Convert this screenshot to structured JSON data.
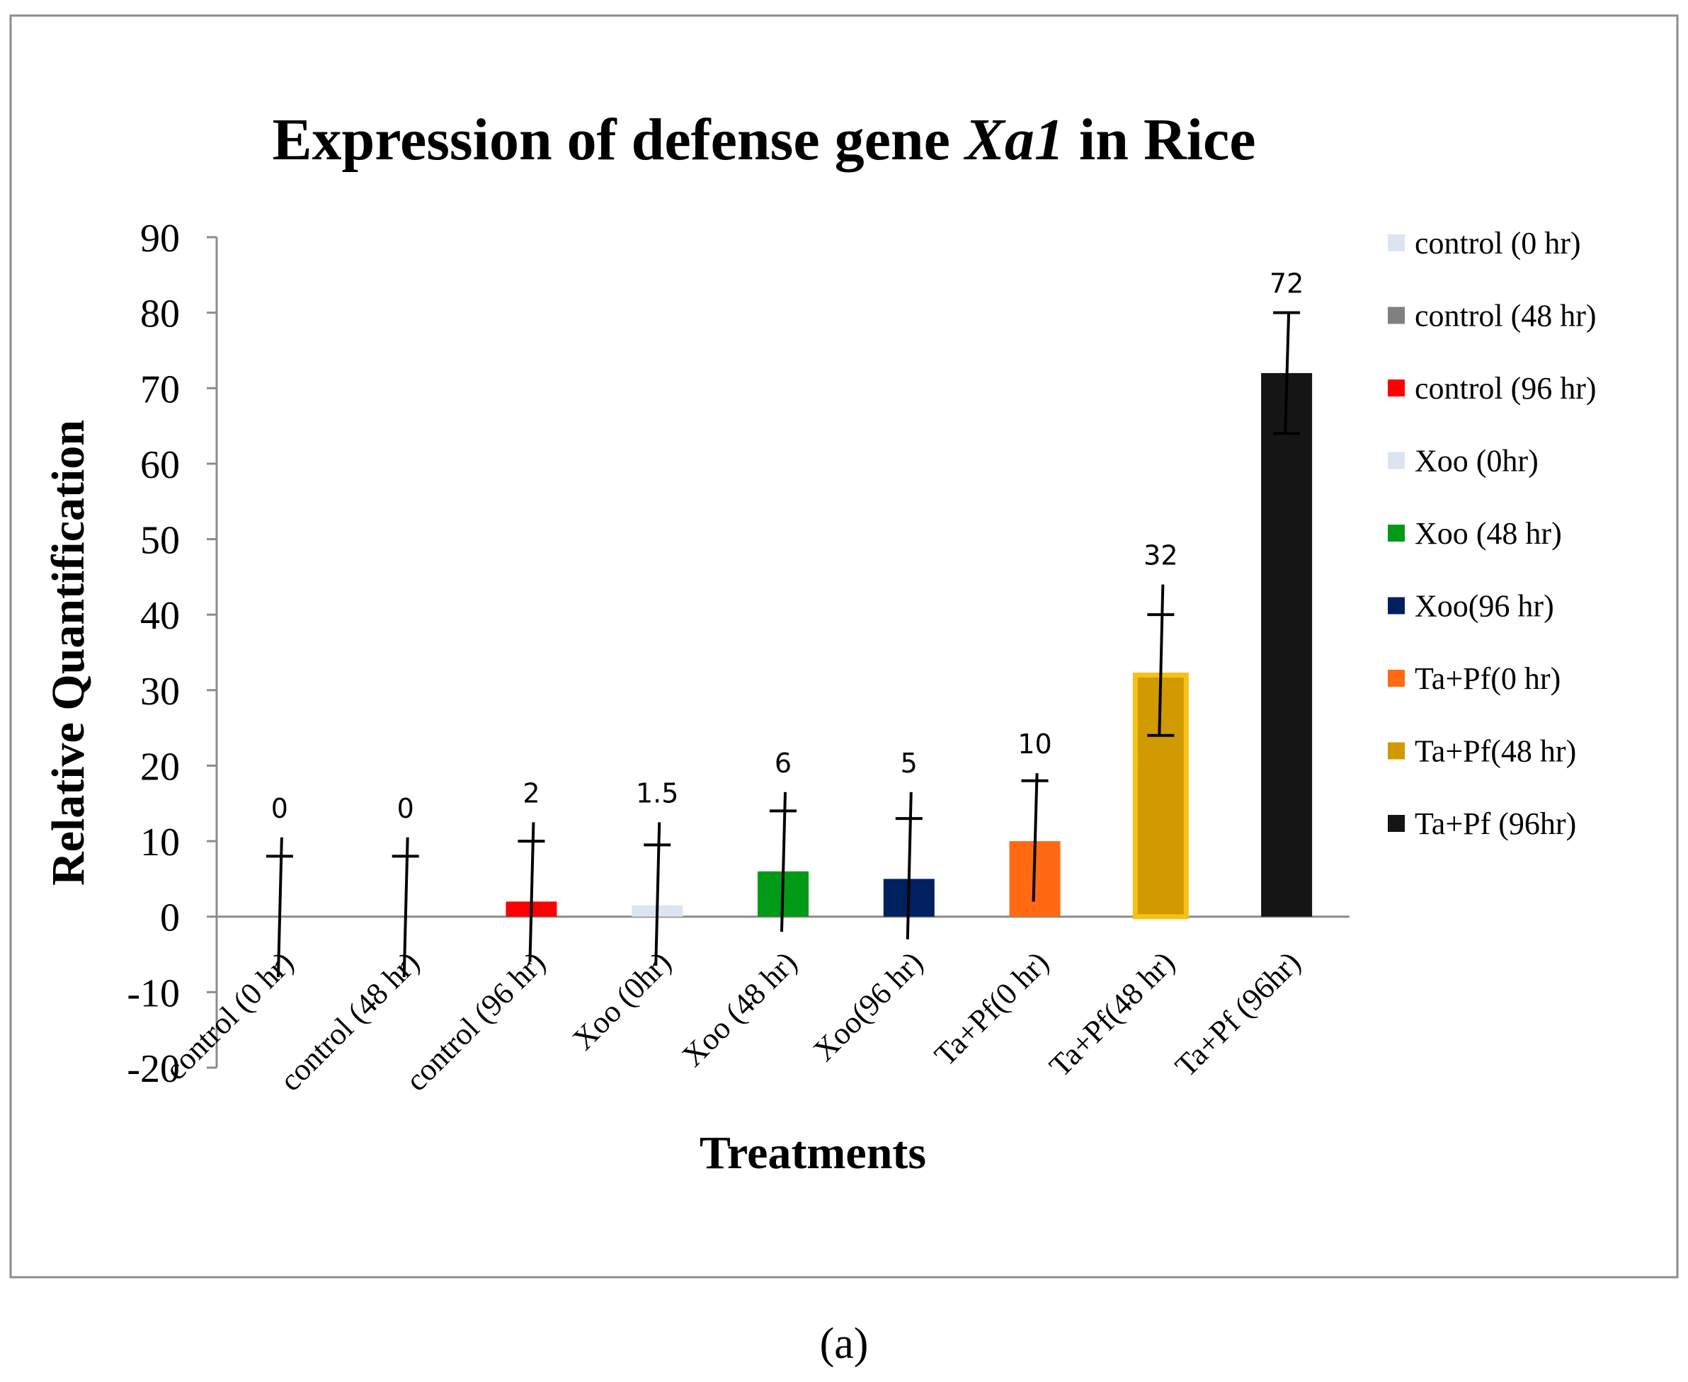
{
  "chart_data": {
    "type": "bar",
    "title_prefix": "Expression of defense gene ",
    "title_gene": "Xa1",
    "title_suffix": " in Rice",
    "xlabel": "Treatments",
    "ylabel": "Relative Quantification",
    "ylim": [
      -20,
      90
    ],
    "yticks": [
      -20,
      -10,
      0,
      10,
      20,
      30,
      40,
      50,
      60,
      70,
      80,
      90
    ],
    "legend_position": "right",
    "categories": [
      "control (0 hr)",
      "control (48 hr)",
      "control (96 hr)",
      "Xoo (0hr)",
      "Xoo (48 hr)",
      "Xoo(96 hr)",
      "Ta+Pf(0 hr)",
      "Ta+Pf(48 hr)",
      "Ta+Pf (96hr)"
    ],
    "values": [
      0,
      0,
      2,
      1.5,
      6,
      5,
      10,
      32,
      72
    ],
    "value_labels": [
      "0",
      "0",
      "2",
      "1.5",
      "6",
      "5",
      "10",
      "32",
      "72"
    ],
    "error_low": [
      -8,
      -8,
      -6,
      -6.5,
      -2,
      -3,
      2,
      24,
      64
    ],
    "error_high": [
      10.5,
      10.5,
      12.5,
      12.5,
      16.5,
      16.5,
      19,
      44,
      80
    ],
    "error_mark": [
      8,
      8,
      10,
      9.5,
      14,
      13,
      18,
      40,
      80
    ],
    "colors": [
      "#dbe5f1",
      "#808080",
      "#ff0000",
      "#dbe5f1",
      "#009a17",
      "#002060",
      "#ff6a13",
      "#d09a00",
      "#151515"
    ],
    "legend": [
      {
        "label": "control (0 hr)",
        "color": "#dbe5f1"
      },
      {
        "label": "control (48 hr)",
        "color": "#808080"
      },
      {
        "label": "control (96 hr)",
        "color": "#ff0000"
      },
      {
        "label": "Xoo (0hr)",
        "color": "#dbe5f1"
      },
      {
        "label": "Xoo (48 hr)",
        "color": "#009a17"
      },
      {
        "label": "Xoo(96 hr)",
        "color": "#002060"
      },
      {
        "label": "Ta+Pf(0 hr)",
        "color": "#ff6a13"
      },
      {
        "label": "Ta+Pf(48 hr)",
        "color": "#d09a00"
      },
      {
        "label": "Ta+Pf (96hr)",
        "color": "#151515"
      }
    ]
  },
  "panel_label": "(a)"
}
